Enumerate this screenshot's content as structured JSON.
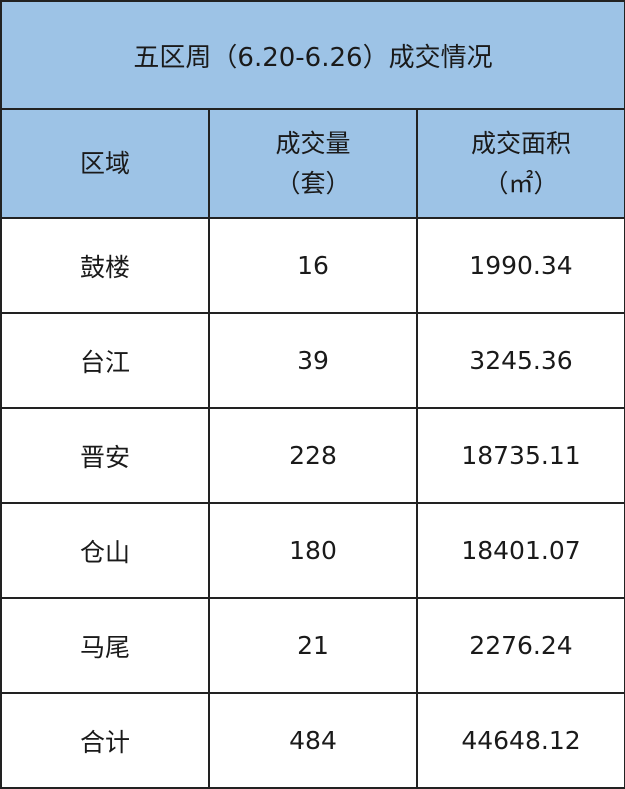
{
  "title": "五区周（6.20-6.26）成交情况",
  "header_color": "#9dc3e6",
  "columns": [
    {
      "line1": "区域",
      "line2": ""
    },
    {
      "line1": "成交量",
      "line2": "（套）"
    },
    {
      "line1": "成交面积",
      "line2": "（㎡）"
    }
  ],
  "rows": [
    [
      "鼓楼",
      "16",
      "1990.34"
    ],
    [
      "台江",
      "39",
      "3245.36"
    ],
    [
      "晋安",
      "228",
      "18735.11"
    ],
    [
      "仓山",
      "180",
      "18401.07"
    ],
    [
      "马尾",
      "21",
      "2276.24"
    ],
    [
      "合计",
      "484",
      "44648.12"
    ]
  ]
}
